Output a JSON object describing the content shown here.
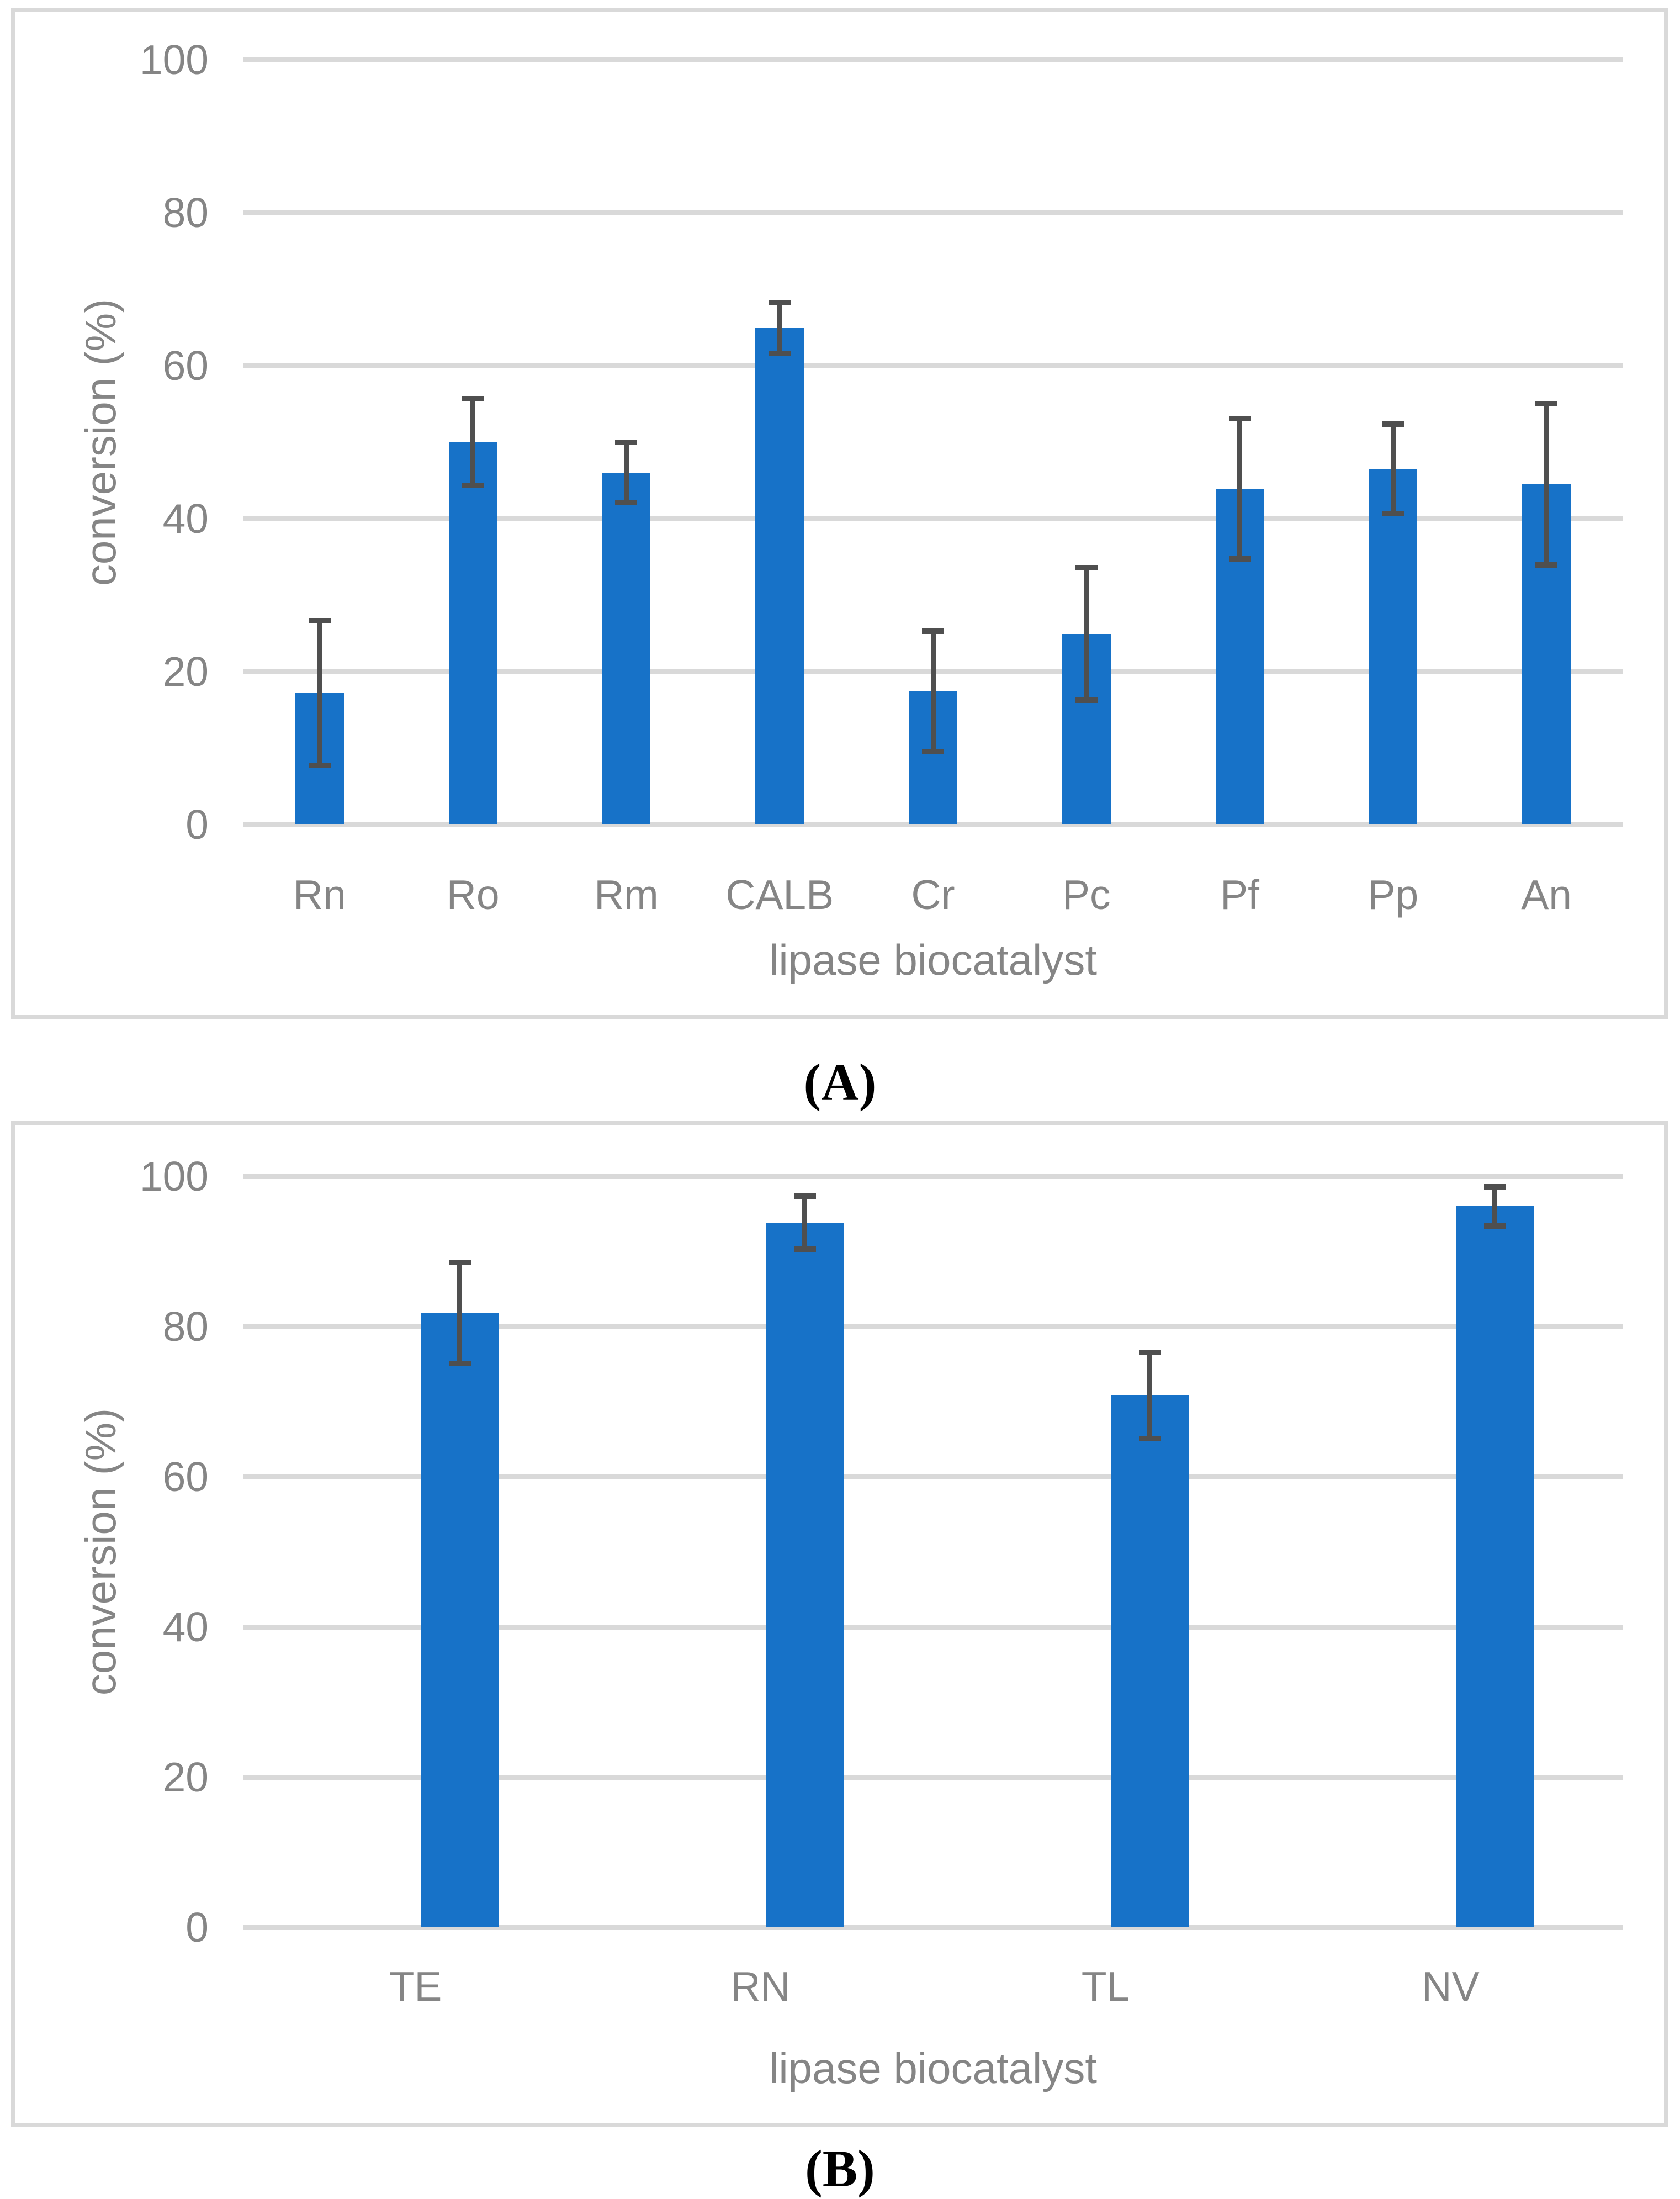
{
  "figure_labels": {
    "a": "(A)",
    "b": "(B)"
  },
  "colors": {
    "bar": "#1772C8",
    "error_bar": "#4F4F4F",
    "gridline": "#D9D9D9",
    "panel_border": "#D9D9D9",
    "axis_text": "#858585",
    "caption_text": "#000000",
    "background": "#FFFFFF"
  },
  "chart_data": [
    {
      "id": "A",
      "type": "bar",
      "panel_label": "(A)",
      "categories": [
        "Rn",
        "Ro",
        "Rm",
        "CALB",
        "Cr",
        "Pc",
        "Pf",
        "Pp",
        "An"
      ],
      "values": [
        17.2,
        50.0,
        46.0,
        64.9,
        17.4,
        24.9,
        43.9,
        46.5,
        44.5
      ],
      "errors": [
        9.8,
        6.0,
        4.3,
        3.7,
        8.2,
        9.0,
        9.5,
        6.2,
        10.9
      ],
      "xlabel": "lipase biocatalyst",
      "ylabel": "conversion (%)",
      "ylim": [
        0,
        100
      ],
      "yticks": [
        0,
        20,
        40,
        60,
        80,
        100
      ],
      "grid": true,
      "legend": "none"
    },
    {
      "id": "B",
      "type": "bar",
      "panel_label": "(B)",
      "categories": [
        "TE",
        "RN",
        "TL",
        "NV"
      ],
      "values": [
        81.8,
        93.8,
        70.8,
        96.0
      ],
      "errors": [
        7.1,
        3.9,
        6.1,
        3.0
      ],
      "xlabel": "lipase biocatalyst",
      "ylabel": "conversion (%)",
      "ylim": [
        0,
        100
      ],
      "yticks": [
        0,
        20,
        40,
        60,
        80,
        100
      ],
      "grid": true,
      "legend": "none"
    }
  ]
}
